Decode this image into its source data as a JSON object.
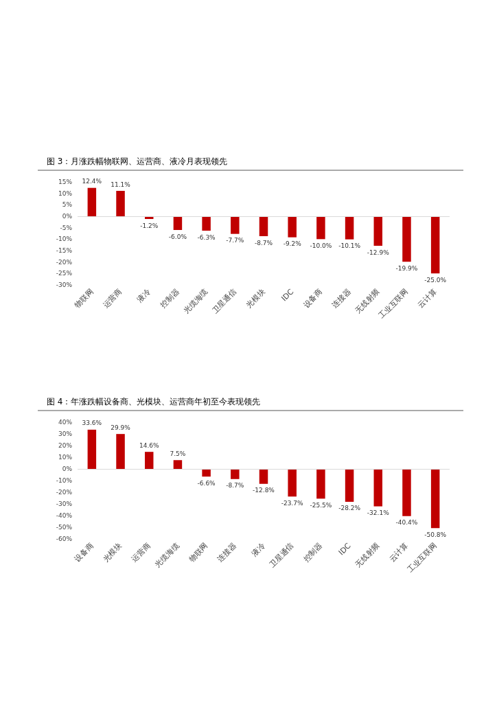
{
  "chart_data": [
    {
      "type": "bar",
      "title": "图 3：月涨跌幅物联网、运营商、液冷月表现领先",
      "categories": [
        "物联网",
        "运营商",
        "液冷",
        "控制器",
        "光缆海缆",
        "卫星通信",
        "光模块",
        "IDC",
        "设备商",
        "连接器",
        "无线射频",
        "工业互联网",
        "云计算"
      ],
      "values": [
        12.4,
        11.1,
        -1.2,
        -6.0,
        -6.3,
        -7.7,
        -8.7,
        -9.2,
        -10.0,
        -10.1,
        -12.9,
        -19.9,
        -25.0
      ],
      "value_labels": [
        "12.4%",
        "11.1%",
        "-1.2%",
        "-6.0%",
        "-6.3%",
        "-7.7%",
        "-8.7%",
        "-9.2%",
        "-10.0%",
        "-10.1%",
        "-12.9%",
        "-19.9%",
        "-25.0%"
      ],
      "color": "#c00000",
      "ylim": [
        -30,
        15
      ],
      "yticks": [
        {
          "value": -30,
          "label": "-30%"
        },
        {
          "value": -25,
          "label": "-25%"
        },
        {
          "value": -20,
          "label": "-20%"
        },
        {
          "value": -15,
          "label": "-15%"
        },
        {
          "value": -10,
          "label": "-10%"
        },
        {
          "value": -5,
          "label": "-5%"
        },
        {
          "value": 0,
          "label": "0%"
        },
        {
          "value": 5,
          "label": "5%"
        },
        {
          "value": 10,
          "label": "10%"
        },
        {
          "value": 15,
          "label": "15%"
        }
      ],
      "ref_lines": [
        {
          "axis": "y",
          "value": 0,
          "color": "#d9d9d9"
        }
      ],
      "grid": false
    },
    {
      "type": "bar",
      "title": "图 4：年涨跌幅设备商、光模块、运营商年初至今表现领先",
      "categories": [
        "设备商",
        "光模块",
        "运营商",
        "光缆海缆",
        "物联网",
        "连接器",
        "液冷",
        "卫星通信",
        "控制器",
        "IDC",
        "无线射频",
        "云计算",
        "工业互联网"
      ],
      "values": [
        33.6,
        29.9,
        14.6,
        7.5,
        -6.6,
        -8.7,
        -12.8,
        -23.7,
        -25.5,
        -28.2,
        -32.1,
        -40.4,
        -50.8
      ],
      "value_labels": [
        "33.6%",
        "29.9%",
        "14.6%",
        "7.5%",
        "-6.6%",
        "-8.7%",
        "-12.8%",
        "-23.7%",
        "-25.5%",
        "-28.2%",
        "-32.1%",
        "-40.4%",
        "-50.8%"
      ],
      "color": "#c00000",
      "ylim": [
        -60,
        40
      ],
      "yticks": [
        {
          "value": -60,
          "label": "-60%"
        },
        {
          "value": -50,
          "label": "-50%"
        },
        {
          "value": -40,
          "label": "-40%"
        },
        {
          "value": -30,
          "label": "-30%"
        },
        {
          "value": -20,
          "label": "-20%"
        },
        {
          "value": -10,
          "label": "-10%"
        },
        {
          "value": 0,
          "label": "0%"
        },
        {
          "value": 10,
          "label": "10%"
        },
        {
          "value": 20,
          "label": "20%"
        },
        {
          "value": 30,
          "label": "30%"
        },
        {
          "value": 40,
          "label": "40%"
        }
      ],
      "ref_lines": [
        {
          "axis": "y",
          "value": 0,
          "color": "#d9d9d9"
        }
      ],
      "grid": false
    }
  ]
}
